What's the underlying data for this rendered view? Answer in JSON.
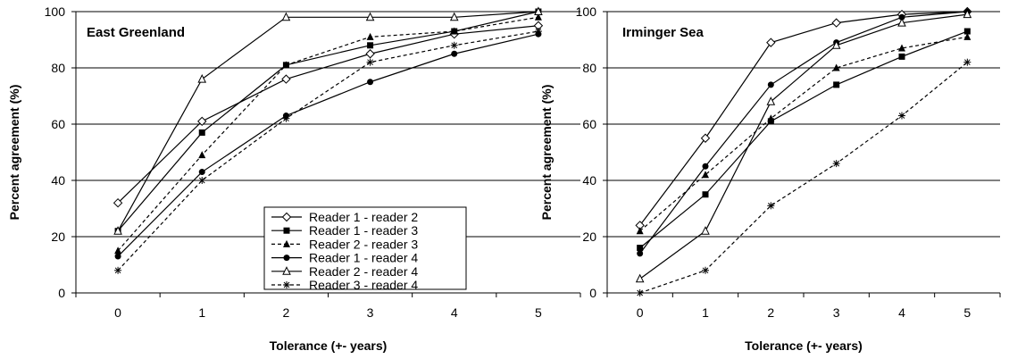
{
  "chart_data": [
    {
      "type": "line",
      "title": "East Greenland",
      "xlabel": "Tolerance (+- years)",
      "ylabel": "Percent agreement (%)",
      "x": [
        0,
        1,
        2,
        3,
        4,
        5
      ],
      "ylim": [
        0,
        100
      ],
      "yticks": [
        0,
        20,
        40,
        60,
        80,
        100
      ],
      "grid": "horizontal",
      "legend_position": "bottom-right",
      "series": [
        {
          "name": "Reader 1 - reader 2",
          "values": [
            32,
            61,
            76,
            85,
            92,
            95
          ],
          "marker": "diamond-open",
          "dash": "solid"
        },
        {
          "name": "Reader 1 - reader 3",
          "values": [
            22,
            57,
            81,
            88,
            93,
            100
          ],
          "marker": "square",
          "dash": "solid"
        },
        {
          "name": "Reader 2 - reader 3",
          "values": [
            15,
            49,
            81,
            91,
            93,
            98
          ],
          "marker": "triangle",
          "dash": "dashed"
        },
        {
          "name": "Reader 1 - reader 4",
          "values": [
            13,
            43,
            63,
            75,
            85,
            92
          ],
          "marker": "circle",
          "dash": "solid"
        },
        {
          "name": "Reader 2 - reader 4",
          "values": [
            22,
            76,
            98,
            98,
            98,
            100
          ],
          "marker": "triangle-open",
          "dash": "solid"
        },
        {
          "name": "Reader 3 - reader 4",
          "values": [
            8,
            40,
            62,
            82,
            88,
            93
          ],
          "marker": "star",
          "dash": "dashed"
        }
      ]
    },
    {
      "type": "line",
      "title": "Irminger Sea",
      "xlabel": "Tolerance (+- years)",
      "ylabel": "Percent agreement (%)",
      "x": [
        0,
        1,
        2,
        3,
        4,
        5
      ],
      "ylim": [
        0,
        100
      ],
      "yticks": [
        0,
        20,
        40,
        60,
        80,
        100
      ],
      "grid": "horizontal",
      "legend_position": "none",
      "series": [
        {
          "name": "Reader 1 - reader 2",
          "values": [
            24,
            55,
            89,
            96,
            99,
            100
          ],
          "marker": "diamond-open",
          "dash": "solid"
        },
        {
          "name": "Reader 1 - reader 3",
          "values": [
            16,
            35,
            61,
            74,
            84,
            93
          ],
          "marker": "square",
          "dash": "solid"
        },
        {
          "name": "Reader 2 - reader 3",
          "values": [
            22,
            42,
            62,
            80,
            87,
            91
          ],
          "marker": "triangle",
          "dash": "dashed"
        },
        {
          "name": "Reader 1 - reader 4",
          "values": [
            14,
            45,
            74,
            89,
            98,
            100
          ],
          "marker": "circle",
          "dash": "solid"
        },
        {
          "name": "Reader 2 - reader 4",
          "values": [
            5,
            22,
            68,
            88,
            96,
            99
          ],
          "marker": "triangle-open",
          "dash": "solid"
        },
        {
          "name": "Reader 3 - reader 4",
          "values": [
            0,
            8,
            31,
            46,
            63,
            82
          ],
          "marker": "star",
          "dash": "dashed"
        }
      ]
    }
  ]
}
